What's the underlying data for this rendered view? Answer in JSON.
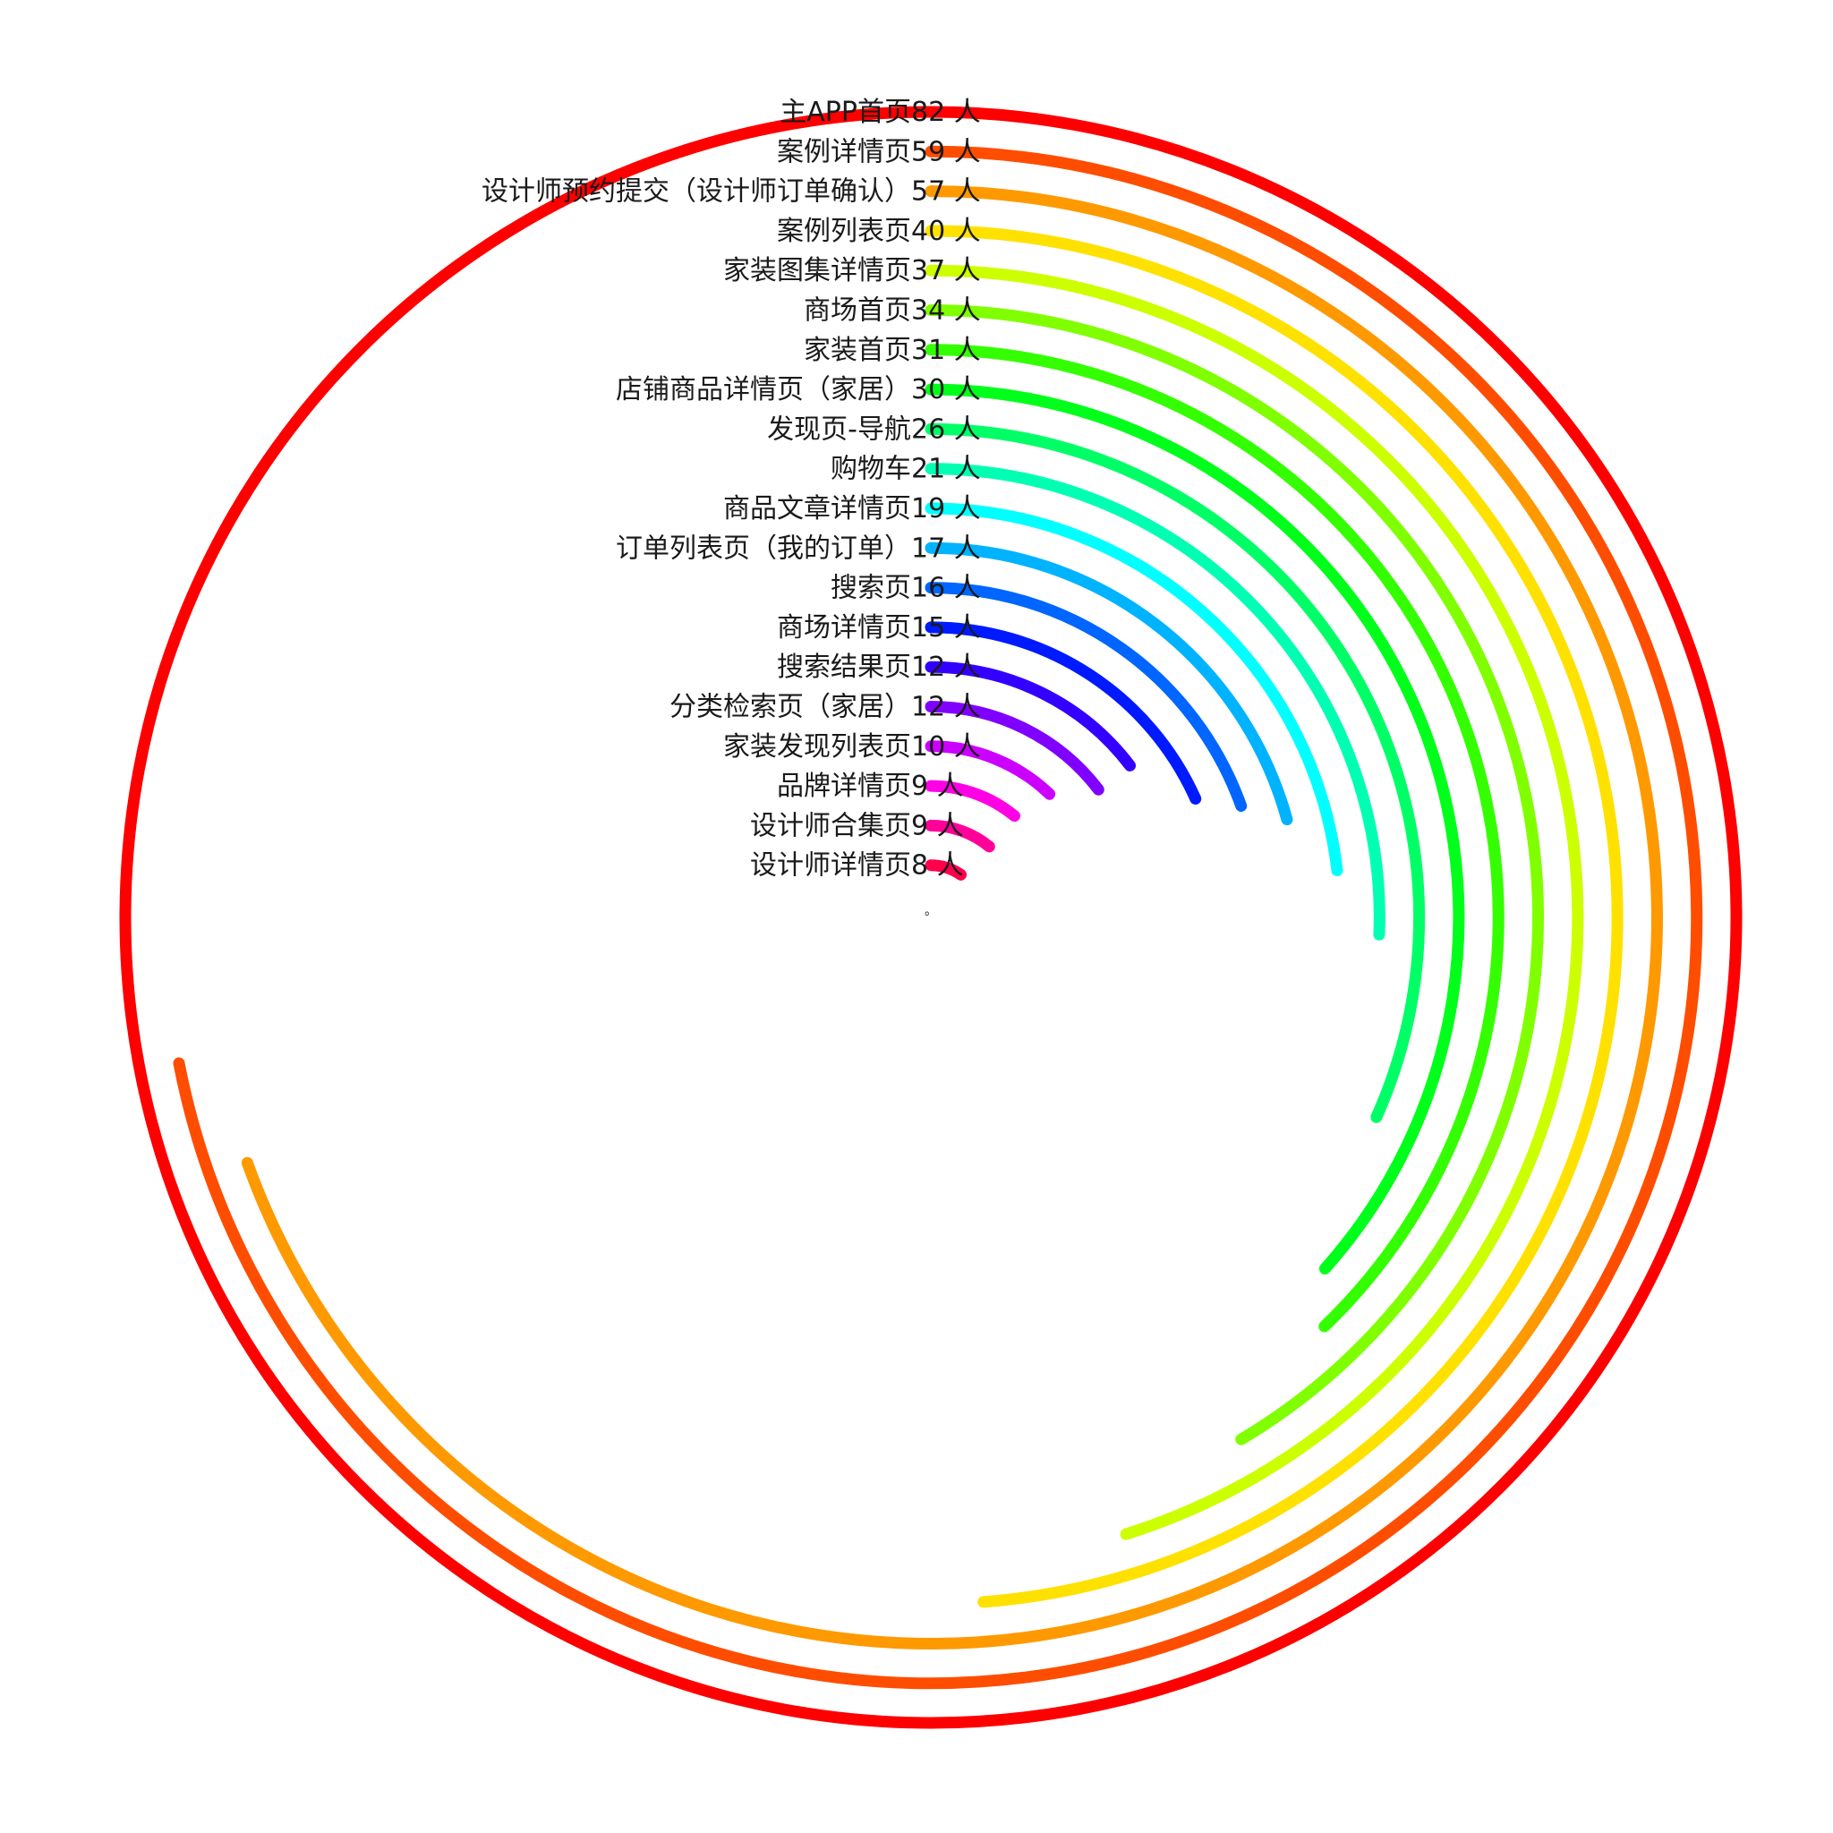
{
  "chart_data": {
    "type": "radial-bar",
    "unit": "人",
    "scale_max": 82,
    "series": [
      {
        "name": "主APP首页",
        "value": 82,
        "color": "#ff0000"
      },
      {
        "name": "案例详情页",
        "value": 59,
        "color": "#ff4d00"
      },
      {
        "name": "设计师预约提交（设计师订单确认）",
        "value": 57,
        "color": "#ff9900"
      },
      {
        "name": "案例列表页",
        "value": 40,
        "color": "#ffe100"
      },
      {
        "name": "家装图集详情页",
        "value": 37,
        "color": "#ccff00"
      },
      {
        "name": "商场首页",
        "value": 34,
        "color": "#80ff00"
      },
      {
        "name": "家装首页",
        "value": 31,
        "color": "#33ff00"
      },
      {
        "name": "店铺商品详情页（家居）",
        "value": 30,
        "color": "#00ff1a"
      },
      {
        "name": "发现页-导航",
        "value": 26,
        "color": "#00ff66"
      },
      {
        "name": "购物车",
        "value": 21,
        "color": "#00ffb3"
      },
      {
        "name": "商品文章详情页",
        "value": 19,
        "color": "#00ffff"
      },
      {
        "name": "订单列表页（我的订单）",
        "value": 17,
        "color": "#00b3ff"
      },
      {
        "name": "搜索页",
        "value": 16,
        "color": "#0066ff"
      },
      {
        "name": "商场详情页",
        "value": 15,
        "color": "#001aff"
      },
      {
        "name": "搜索结果页",
        "value": 12,
        "color": "#3300ff"
      },
      {
        "name": "分类检索页（家居）",
        "value": 12,
        "color": "#8000ff"
      },
      {
        "name": "家装发现列表页",
        "value": 10,
        "color": "#cc00ff"
      },
      {
        "name": "品牌详情页",
        "value": 9,
        "color": "#ff00e6"
      },
      {
        "name": "设计师合集页",
        "value": 9,
        "color": "#ff0099"
      },
      {
        "name": "设计师详情页",
        "value": 8,
        "color": "#ff004d"
      }
    ],
    "center_mark": "。"
  }
}
